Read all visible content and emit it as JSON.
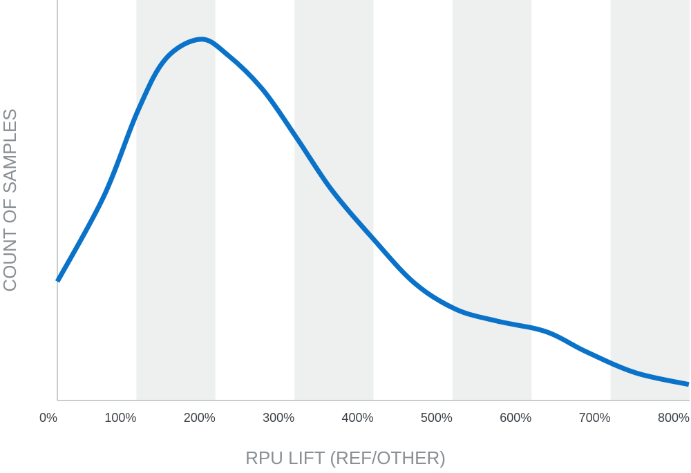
{
  "chart_data": {
    "type": "line",
    "x_label": "RPU LIFT (REF/OTHER)",
    "y_label": "COUNT OF SAMPLES",
    "xlim": [
      0,
      800
    ],
    "ylim": [
      0,
      100
    ],
    "xticks": [
      {
        "value": 0,
        "label": "0%"
      },
      {
        "value": 100,
        "label": "100%"
      },
      {
        "value": 200,
        "label": "200%"
      },
      {
        "value": 300,
        "label": "300%"
      },
      {
        "value": 400,
        "label": "400%"
      },
      {
        "value": 500,
        "label": "500%"
      },
      {
        "value": 600,
        "label": "600%"
      },
      {
        "value": 700,
        "label": "700%"
      },
      {
        "value": 800,
        "label": "800%"
      }
    ],
    "shaded_bands": true,
    "band_color": "#eef0f0",
    "series": [
      {
        "color": "#0a72c8",
        "x": [
          0,
          58.6,
          102,
          137,
          181,
          216,
          260,
          303,
          347,
          399,
          452,
          504,
          557,
          618,
          670,
          732,
          799
        ],
        "values": [
          29.7,
          50.9,
          72.4,
          85.3,
          90.2,
          86.2,
          77.6,
          65.5,
          52.6,
          40.5,
          29.3,
          22.8,
          19.8,
          17.2,
          12.1,
          6.9,
          4.0
        ]
      }
    ]
  }
}
